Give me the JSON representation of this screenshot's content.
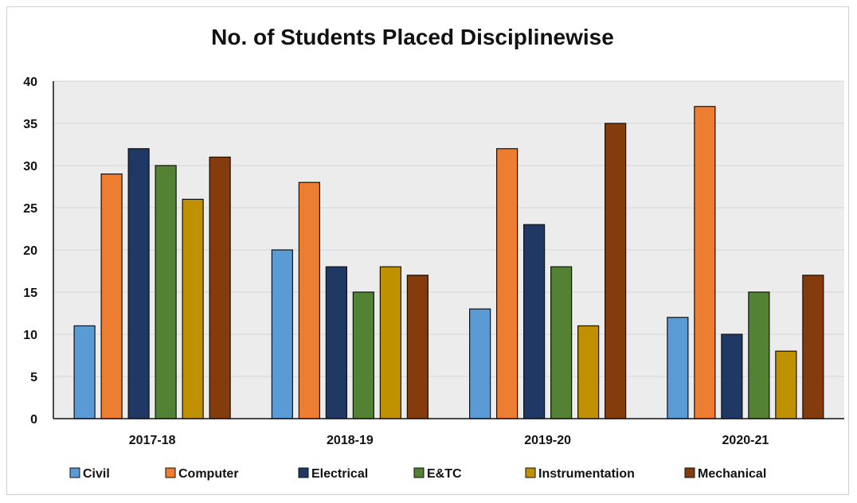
{
  "chart_data": {
    "type": "bar",
    "title": "No. of Students Placed Disciplinewise",
    "xlabel": "",
    "ylabel": "",
    "categories": [
      "2017-18",
      "2018-19",
      "2019-20",
      "2020-21"
    ],
    "ylim": [
      0,
      40
    ],
    "yticks": [
      0,
      5,
      10,
      15,
      20,
      25,
      30,
      35,
      40
    ],
    "grid": true,
    "legend_position": "bottom",
    "plot_background": "#ececec",
    "series": [
      {
        "name": "Civil",
        "color": "#5b9bd5",
        "values": [
          11,
          20,
          13,
          12
        ]
      },
      {
        "name": "Computer",
        "color": "#ed7d31",
        "values": [
          29,
          28,
          32,
          37
        ]
      },
      {
        "name": "Electrical",
        "color": "#1f3864",
        "values": [
          32,
          18,
          23,
          10
        ]
      },
      {
        "name": "E&TC",
        "color": "#548235",
        "values": [
          30,
          15,
          18,
          15
        ]
      },
      {
        "name": "Instrumentation",
        "color": "#bf9000",
        "values": [
          26,
          18,
          11,
          8
        ]
      },
      {
        "name": "Mechanical",
        "color": "#843c0c",
        "values": [
          31,
          17,
          35,
          17
        ]
      }
    ]
  }
}
